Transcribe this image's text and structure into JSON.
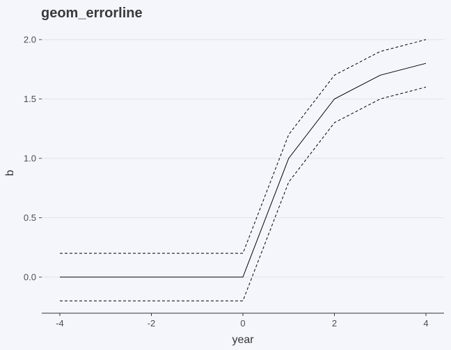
{
  "chart_data": {
    "type": "line",
    "title": "geom_errorline",
    "xlabel": "year",
    "ylabel": "b",
    "xlim": [
      -4,
      4
    ],
    "ylim": [
      -0.2,
      2.0
    ],
    "x_ticks": [
      -4,
      -2,
      0,
      2,
      4
    ],
    "x_tick_labels": [
      "-4",
      "-2",
      "0",
      "2",
      "4"
    ],
    "y_ticks": [
      0.0,
      0.5,
      1.0,
      1.5,
      2.0
    ],
    "y_tick_labels": [
      "0.0",
      "0.5",
      "1.0",
      "1.5",
      "2.0"
    ],
    "grid": "horizontal major",
    "legend": "none",
    "x": [
      -4,
      -3,
      -2,
      -1,
      0,
      1,
      2,
      3,
      4
    ],
    "series": [
      {
        "role": "estimate",
        "style": "solid",
        "values": [
          0,
          0,
          0,
          0,
          0,
          1.0,
          1.5,
          1.7,
          1.8
        ]
      },
      {
        "role": "upper",
        "style": "dashed",
        "values": [
          0.2,
          0.2,
          0.2,
          0.2,
          0.2,
          1.2,
          1.7,
          1.9,
          2.0
        ]
      },
      {
        "role": "lower",
        "style": "dashed",
        "values": [
          -0.2,
          -0.2,
          -0.2,
          -0.2,
          -0.2,
          0.8,
          1.3,
          1.5,
          1.6
        ]
      }
    ],
    "colors": {
      "background": "#f4f6fb",
      "line": "#000000",
      "grid": "#e0e3ea",
      "axis": "#333333",
      "tick_text": "#4d4d4d",
      "title": "#3a3a3a"
    }
  }
}
